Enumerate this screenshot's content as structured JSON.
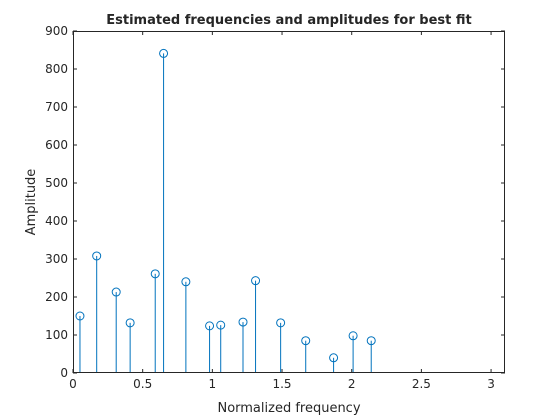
{
  "chart_data": {
    "type": "stem",
    "title": "Estimated frequencies and amplitudes for best fit",
    "xlabel": "Normalized frequency",
    "ylabel": "Amplitude",
    "xlim": [
      0,
      3.1
    ],
    "ylim": [
      0,
      900
    ],
    "xticks": [
      0,
      0.5,
      1,
      1.5,
      2,
      2.5,
      3
    ],
    "xtick_labels": [
      "0",
      "0.5",
      "1",
      "1.5",
      "2",
      "2.5",
      "3"
    ],
    "yticks": [
      0,
      100,
      200,
      300,
      400,
      500,
      600,
      700,
      800,
      900
    ],
    "ytick_labels": [
      "0",
      "100",
      "200",
      "300",
      "400",
      "500",
      "600",
      "700",
      "800",
      "900"
    ],
    "grid": false,
    "color": "#0072BD",
    "series": [
      {
        "x": [
          0.05,
          0.17,
          0.31,
          0.41,
          0.59,
          0.65,
          0.81,
          0.98,
          1.06,
          1.22,
          1.31,
          1.49,
          1.67,
          1.87,
          2.01,
          2.14
        ],
        "y": [
          150,
          308,
          213,
          132,
          261,
          841,
          240,
          124,
          126,
          134,
          243,
          132,
          85,
          40,
          98,
          85
        ]
      }
    ]
  }
}
